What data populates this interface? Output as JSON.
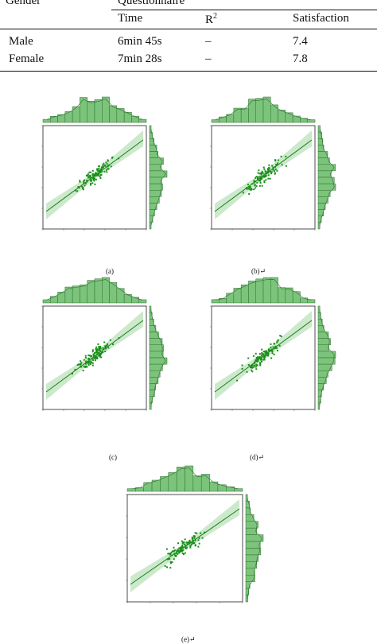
{
  "table": {
    "header_group": "Questionnaire",
    "row_header": "Gender",
    "columns": [
      "Time",
      "R²",
      "Satisfaction"
    ],
    "rows": [
      {
        "gender": "Male",
        "time": "6min 45s",
        "r2": "–",
        "satisfaction": "7.4"
      },
      {
        "gender": "Female",
        "time": "7min 28s",
        "r2": "–",
        "satisfaction": "7.8"
      }
    ]
  },
  "figure": {
    "panels": [
      {
        "caption": "(a)"
      },
      {
        "caption": "(b)↵"
      },
      {
        "caption": "(c)"
      },
      {
        "caption": "(d)↵"
      },
      {
        "caption": "(e)↵"
      }
    ]
  },
  "colors": {
    "point": "#1a8f1a",
    "line": "#1a7d1a",
    "ci_band": "#bfe3bf",
    "hist_fill": "#7cc47c",
    "hist_stroke": "#2f6f2f"
  }
}
